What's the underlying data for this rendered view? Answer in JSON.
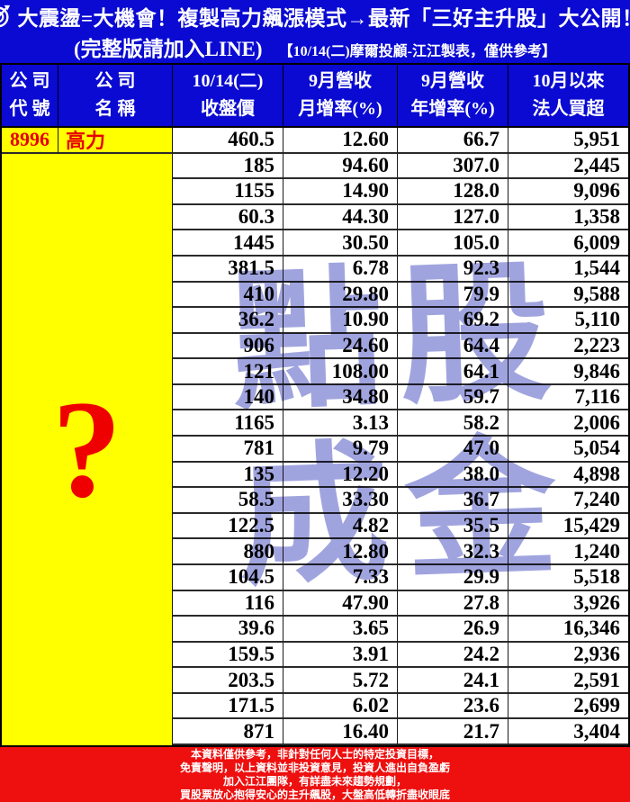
{
  "banner": {
    "headline": "大震盪=大機會！複製高力飆漲模式→最新「三好主升股」大公開！",
    "line2_main": "(完整版請加入LINE)",
    "line2_note": "【10/14(二)摩爾投顧-江江製表，僅供參考】"
  },
  "table": {
    "headers": [
      {
        "line1": "公 司",
        "line2": "代 號"
      },
      {
        "line1": "公 司",
        "line2": "名 稱"
      },
      {
        "line1": "10/14(二)",
        "line2": "收盤價"
      },
      {
        "line1": "9月營收",
        "line2": "月增率(%)"
      },
      {
        "line1": "9月營收",
        "line2": "年增率(%)"
      },
      {
        "line1": "10月以來",
        "line2": "法人買超"
      }
    ],
    "mask_symbol": "?"
  },
  "chart_data": {
    "type": "table",
    "title": "大震盪=大機會！複製高力飆漲模式→最新「三好主升股」大公開！",
    "columns": [
      "公司代號",
      "公司名稱",
      "10/14(二)收盤價",
      "9月營收月增率(%)",
      "9月營收年增率(%)",
      "10月以來法人買超"
    ],
    "note": "rows 2-24 company code and name are hidden behind a large red question mark on yellow",
    "rows": [
      {
        "code": "8996",
        "name": "高力",
        "close": "460.5",
        "mom": "12.60",
        "yoy": "66.7",
        "netbuy": "5,951"
      },
      {
        "code": "",
        "name": "",
        "close": "185",
        "mom": "94.60",
        "yoy": "307.0",
        "netbuy": "2,445"
      },
      {
        "code": "",
        "name": "",
        "close": "1155",
        "mom": "14.90",
        "yoy": "128.0",
        "netbuy": "9,096"
      },
      {
        "code": "",
        "name": "",
        "close": "60.3",
        "mom": "44.30",
        "yoy": "127.0",
        "netbuy": "1,358"
      },
      {
        "code": "",
        "name": "",
        "close": "1445",
        "mom": "30.50",
        "yoy": "105.0",
        "netbuy": "6,009"
      },
      {
        "code": "",
        "name": "",
        "close": "381.5",
        "mom": "6.78",
        "yoy": "92.3",
        "netbuy": "1,544"
      },
      {
        "code": "",
        "name": "",
        "close": "410",
        "mom": "29.80",
        "yoy": "79.9",
        "netbuy": "9,588"
      },
      {
        "code": "",
        "name": "",
        "close": "36.2",
        "mom": "10.90",
        "yoy": "69.2",
        "netbuy": "5,110"
      },
      {
        "code": "",
        "name": "",
        "close": "906",
        "mom": "24.60",
        "yoy": "64.4",
        "netbuy": "2,223"
      },
      {
        "code": "",
        "name": "",
        "close": "121",
        "mom": "108.00",
        "yoy": "64.1",
        "netbuy": "9,846"
      },
      {
        "code": "",
        "name": "",
        "close": "140",
        "mom": "34.80",
        "yoy": "59.7",
        "netbuy": "7,116"
      },
      {
        "code": "",
        "name": "",
        "close": "1165",
        "mom": "3.13",
        "yoy": "58.2",
        "netbuy": "2,006"
      },
      {
        "code": "",
        "name": "",
        "close": "781",
        "mom": "9.79",
        "yoy": "47.0",
        "netbuy": "5,054"
      },
      {
        "code": "",
        "name": "",
        "close": "135",
        "mom": "12.20",
        "yoy": "38.0",
        "netbuy": "4,898"
      },
      {
        "code": "",
        "name": "",
        "close": "58.5",
        "mom": "33.30",
        "yoy": "36.7",
        "netbuy": "7,240"
      },
      {
        "code": "",
        "name": "",
        "close": "122.5",
        "mom": "4.82",
        "yoy": "35.5",
        "netbuy": "15,429"
      },
      {
        "code": "",
        "name": "",
        "close": "880",
        "mom": "12.80",
        "yoy": "32.3",
        "netbuy": "1,240"
      },
      {
        "code": "",
        "name": "",
        "close": "104.5",
        "mom": "7.33",
        "yoy": "29.9",
        "netbuy": "5,518"
      },
      {
        "code": "",
        "name": "",
        "close": "116",
        "mom": "47.90",
        "yoy": "27.8",
        "netbuy": "3,926"
      },
      {
        "code": "",
        "name": "",
        "close": "39.6",
        "mom": "3.65",
        "yoy": "26.9",
        "netbuy": "16,346"
      },
      {
        "code": "",
        "name": "",
        "close": "159.5",
        "mom": "3.91",
        "yoy": "24.2",
        "netbuy": "2,936"
      },
      {
        "code": "",
        "name": "",
        "close": "203.5",
        "mom": "5.72",
        "yoy": "24.1",
        "netbuy": "2,591"
      },
      {
        "code": "",
        "name": "",
        "close": "171.5",
        "mom": "6.02",
        "yoy": "23.6",
        "netbuy": "2,699"
      },
      {
        "code": "",
        "name": "",
        "close": "871",
        "mom": "16.40",
        "yoy": "21.7",
        "netbuy": "3,404"
      }
    ]
  },
  "watermark": {
    "chars": [
      "點",
      "股",
      "成",
      "金"
    ],
    "color": "#a0a4de"
  },
  "footer": {
    "lines": [
      "本資料僅供參考，非針對任何人士的特定投資目標，",
      "免責聲明，以上資料並非投資意見，投資人進出自負盈虧",
      "加入江江團隊，有詳盡未來趨勢規劃，",
      "買股票放心抱得安心的主升飆股，大盤高低轉折盡收眼底"
    ]
  },
  "colors": {
    "banner_bg": "#0a0ad2",
    "header_bg": "#0a0ad2",
    "highlight_yellow": "#ffff00",
    "accent_red_text": "#e60000",
    "footer_bg": "#ee0f0f",
    "watermark": "#a0a4de",
    "grid_border": "#1a1a1a"
  }
}
